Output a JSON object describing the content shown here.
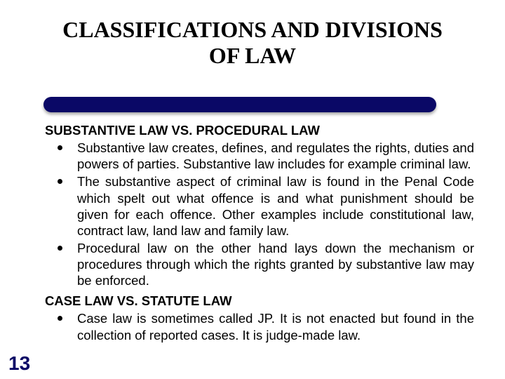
{
  "title_line1": "CLASSIFICATIONS AND DIVISIONS",
  "title_line2": "OF LAW",
  "colors": {
    "bar": "#0a0866",
    "page_number": "#0a0866",
    "text": "#000000",
    "background": "#ffffff"
  },
  "sections": [
    {
      "heading": "SUBSTANTIVE LAW VS. PROCEDURAL LAW",
      "bullets": [
        "Substantive law creates, defines, and regulates the rights, duties and powers of parties. Substantive law includes for example criminal law.",
        "The substantive aspect of criminal law is found in the Penal Code which spelt out what offence is and what punishment should be given for each offence. Other examples include constitutional law, contract law, land law and family law.",
        "Procedural law on the other hand lays down the mechanism or procedures through which the rights granted by substantive law may be enforced."
      ]
    },
    {
      "heading": "CASE LAW VS. STATUTE LAW",
      "bullets": [
        "Case law is sometimes called JP. It is not enacted but found in the collection of reported cases. It is judge-made law."
      ]
    }
  ],
  "page_number": "13",
  "typography": {
    "title_font": "Times New Roman",
    "title_fontsize_pt": 24,
    "body_font": "Arial",
    "body_fontsize_pt": 14,
    "heading_weight": "bold"
  }
}
